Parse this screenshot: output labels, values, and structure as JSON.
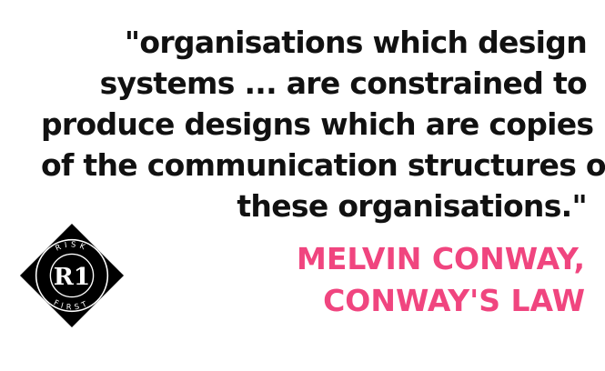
{
  "quote": {
    "lines": [
      "\"organisations which design",
      "systems ... are constrained to",
      "produce designs which are copies",
      "of the communication structures of",
      "these organisations.\""
    ]
  },
  "attribution": {
    "lines": [
      "MELVIN CONWAY,",
      "CONWAY'S LAW"
    ],
    "color": "#f0457f"
  },
  "logo": {
    "monogram": "R1",
    "ring_top_text": "RISK",
    "ring_bottom_text": "FIRST",
    "fill_color": "#000000",
    "ink_color": "#ffffff"
  }
}
